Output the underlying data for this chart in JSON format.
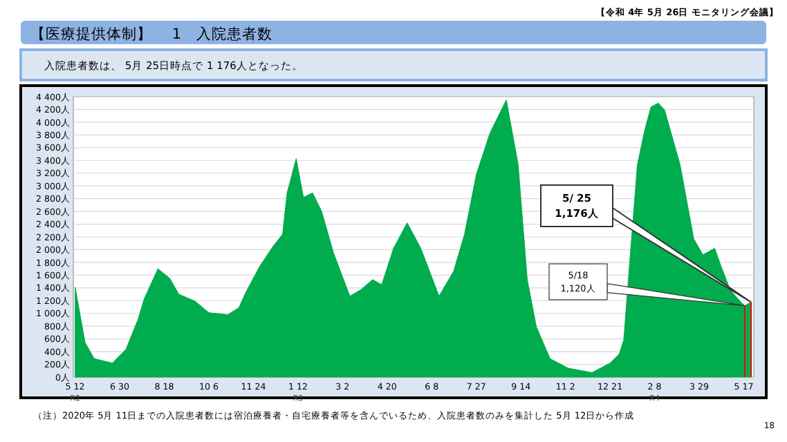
{
  "chart_data": {
    "type": "area",
    "title": "【医療提供体制】　 1　入院患者数",
    "subtitle": "入院患者数は、 5月 25日時点で 1 176人となった。",
    "x": [
      "2020-05-12",
      "2020-05-23",
      "2020-06-02",
      "2020-06-22",
      "2020-07-07",
      "2020-07-20",
      "2020-07-27",
      "2020-08-11",
      "2020-08-24",
      "2020-09-03",
      "2020-09-21",
      "2020-10-06",
      "2020-10-27",
      "2020-11-08",
      "2020-11-16",
      "2020-12-01",
      "2020-12-16",
      "2020-12-26",
      "2020-12-31",
      "2021-01-10",
      "2021-01-18",
      "2021-01-28",
      "2021-02-07",
      "2021-02-20",
      "2021-03-10",
      "2021-03-22",
      "2021-04-04",
      "2021-04-14",
      "2021-04-27",
      "2021-05-12",
      "2021-05-27",
      "2021-06-16",
      "2021-07-02",
      "2021-07-14",
      "2021-07-27",
      "2021-08-11",
      "2021-08-29",
      "2021-09-11",
      "2021-09-21",
      "2021-10-01",
      "2021-10-16",
      "2021-11-05",
      "2021-12-01",
      "2021-12-21",
      "2021-12-31",
      "2022-01-05",
      "2022-01-12",
      "2022-01-20",
      "2022-01-28",
      "2022-02-04",
      "2022-02-12",
      "2022-02-19",
      "2022-03-08",
      "2022-03-23",
      "2022-04-02",
      "2022-04-15",
      "2022-04-22",
      "2022-05-02",
      "2022-05-13",
      "2022-05-18",
      "2022-05-25"
    ],
    "series": [
      {
        "color": "#00ac4e",
        "values": [
          1410,
          540,
          290,
          220,
          440,
          900,
          1230,
          1700,
          1550,
          1300,
          1190,
          1010,
          980,
          1090,
          1340,
          1740,
          2060,
          2240,
          2890,
          3430,
          2820,
          2890,
          2600,
          1950,
          1270,
          1370,
          1530,
          1450,
          2020,
          2420,
          2020,
          1270,
          1660,
          2240,
          3180,
          3830,
          4350,
          3330,
          1530,
          790,
          290,
          140,
          70,
          220,
          360,
          580,
          1880,
          3330,
          3870,
          4240,
          4300,
          4190,
          3330,
          2170,
          1920,
          2020,
          1740,
          1370,
          1190,
          1120,
          1176
        ]
      }
    ],
    "xlim": [
      "2020-05-10",
      "2022-05-28"
    ],
    "xticks": [
      {
        "value": "2020-05-12",
        "label": "5 12$_{R2}$"
      },
      {
        "value": "2020-06-30",
        "label": "6 30"
      },
      {
        "value": "2020-08-18",
        "label": "8 18"
      },
      {
        "value": "2020-10-06",
        "label": "10 6"
      },
      {
        "value": "2020-11-24",
        "label": "11 24"
      },
      {
        "value": "2021-01-12",
        "label": "1 12$_{R3}$"
      },
      {
        "value": "2021-03-02",
        "label": "3 2"
      },
      {
        "value": "2021-04-20",
        "label": "4 20"
      },
      {
        "value": "2021-06-08",
        "label": "6 8"
      },
      {
        "value": "2021-07-27",
        "label": "7 27"
      },
      {
        "value": "2021-09-14",
        "label": "9 14"
      },
      {
        "value": "2021-11-02",
        "label": "11 2"
      },
      {
        "value": "2021-12-21",
        "label": "12 21"
      },
      {
        "value": "2022-02-08",
        "label": "2 8$_{R4}$"
      },
      {
        "value": "2022-03-29",
        "label": "3 29"
      },
      {
        "value": "2022-05-17",
        "label": "5 17"
      }
    ],
    "ylim": [
      0,
      4400
    ],
    "yticks": [
      {
        "value": 0,
        "label": "0人"
      },
      {
        "value": 200,
        "label": "200人"
      },
      {
        "value": 400,
        "label": "400人"
      },
      {
        "value": 600,
        "label": "600人"
      },
      {
        "value": 800,
        "label": "800人"
      },
      {
        "value": 1000,
        "label": "1 000人"
      },
      {
        "value": 1200,
        "label": "1 200人"
      },
      {
        "value": 1400,
        "label": "1 400人"
      },
      {
        "value": 1600,
        "label": "1 600人"
      },
      {
        "value": 1800,
        "label": "1 800人"
      },
      {
        "value": 2000,
        "label": "2 000人"
      },
      {
        "value": 2200,
        "label": "2 200人"
      },
      {
        "value": 2400,
        "label": "2 400人"
      },
      {
        "value": 2600,
        "label": "2 600人"
      },
      {
        "value": 2800,
        "label": "2 800人"
      },
      {
        "value": 3000,
        "label": "3 000人"
      },
      {
        "value": 3200,
        "label": "3 200人"
      },
      {
        "value": 3400,
        "label": "3 400人"
      },
      {
        "value": 3600,
        "label": "3 600人"
      },
      {
        "value": 3800,
        "label": "3 800人"
      },
      {
        "value": 4000,
        "label": "4 000人"
      },
      {
        "value": 4200,
        "label": "4 200人"
      },
      {
        "value": 4400,
        "label": "4 400人"
      }
    ],
    "grid": "y",
    "ref_lines": [
      {
        "axis": "x",
        "value": "2022-05-18",
        "color": "#ff0000"
      },
      {
        "axis": "x",
        "value": "2022-05-25",
        "color": "#ff0000"
      }
    ],
    "annotations": [
      "5/ 25\n1,176人",
      "5/18\n1,120人",
      "【令和 4年 5月 26日 モニタリング会議】",
      "（注）2020年 5月 11日までの入院患者数には宿泊療養者・自宅療養者等を含んでいるため、入院患者数のみを集計した 5月 12日から作成",
      "18"
    ]
  }
}
